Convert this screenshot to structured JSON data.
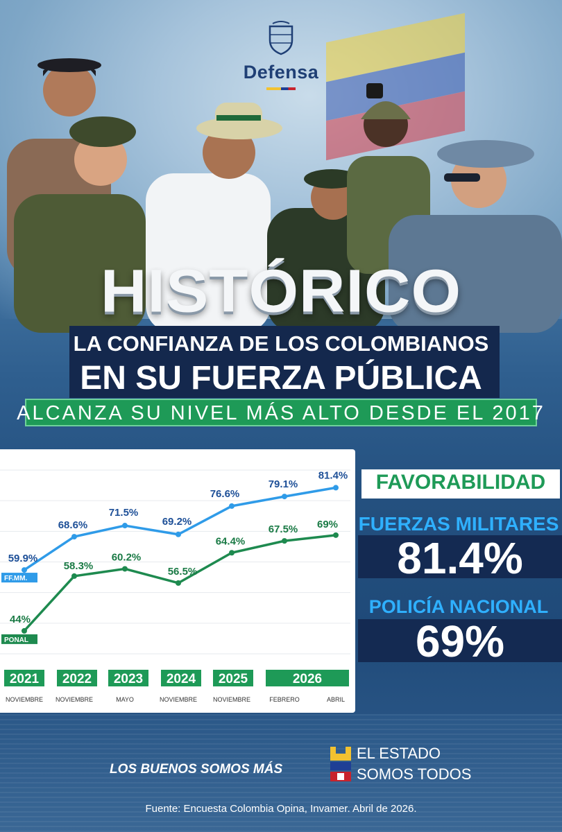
{
  "brand": {
    "ministry": "Defensa"
  },
  "headline": {
    "title": "HISTÓRICO",
    "line1": "LA CONFIANZA DE LOS COLOMBIANOS",
    "line2": "EN SU FUERZA PÚBLICA",
    "tagline": "ALCANZA SU NIVEL MÁS ALTO DESDE EL 2017"
  },
  "chart_data": {
    "type": "line",
    "x": [
      "2021 Noviembre",
      "2022 Noviembre",
      "2023 Mayo",
      "2024 Noviembre",
      "2025 Noviembre",
      "2026 Febrero",
      "2026 Abril"
    ],
    "year_labels": [
      "2021",
      "2022",
      "2023",
      "2024",
      "2025",
      "2026"
    ],
    "month_labels": [
      "NOVIEMBRE",
      "NOVIEMBRE",
      "MAYO",
      "NOVIEMBRE",
      "NOVIEMBRE",
      "FEBRERO",
      "ABRIL"
    ],
    "series": [
      {
        "name": "FF.MM.",
        "values": [
          59.9,
          68.6,
          71.5,
          69.2,
          76.6,
          79.1,
          81.4
        ],
        "labels": [
          "59.9%",
          "68.6%",
          "71.5%",
          "69.2%",
          "76.6%",
          "79.1%",
          "81.4%"
        ],
        "color": "#2f9be8"
      },
      {
        "name": "PONAL",
        "values": [
          44,
          58.3,
          60.2,
          56.5,
          64.4,
          67.5,
          69
        ],
        "labels": [
          "44%",
          "58.3%",
          "60.2%",
          "56.5%",
          "64.4%",
          "67.5%",
          "69%"
        ],
        "color": "#1e8a4f"
      }
    ],
    "ylim": [
      38,
      86
    ],
    "grid": true,
    "legend": "inline-left"
  },
  "summary": {
    "heading": "FAVORABILIDAD",
    "military_label": "FUERZAS MILITARES",
    "military_value": "81.4%",
    "police_label": "POLICÍA NACIONAL",
    "police_value": "69%"
  },
  "footer": {
    "slogan": "LOS BUENOS SOMOS MÁS",
    "estado_line1": "EL ESTADO",
    "estado_line2": "SOMOS TODOS",
    "source": "Fuente: Encuesta Colombia Opina, Invamer. Abril de 2026."
  },
  "colors": {
    "green": "#1e9a57",
    "navy": "#142a52",
    "blue": "#2f9be8",
    "cyan": "#2fb0ff"
  }
}
